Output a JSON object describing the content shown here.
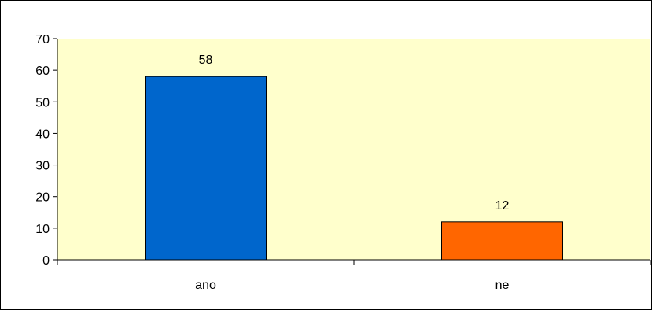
{
  "chart_data": {
    "type": "bar",
    "categories": [
      "ano",
      "ne"
    ],
    "values": [
      58,
      12
    ],
    "data_labels": [
      "58",
      "12"
    ],
    "bar_colors": [
      "#0066cc",
      "#ff6600"
    ],
    "ylim": [
      0,
      70
    ],
    "yticks": [
      0,
      10,
      20,
      30,
      40,
      50,
      60,
      70
    ],
    "ytick_labels": [
      "0",
      "10",
      "20",
      "30",
      "40",
      "50",
      "60",
      "70"
    ],
    "title": "",
    "xlabel": "",
    "ylabel": "",
    "grid": false,
    "legend": "none",
    "plot_background": "#ffffcc"
  }
}
